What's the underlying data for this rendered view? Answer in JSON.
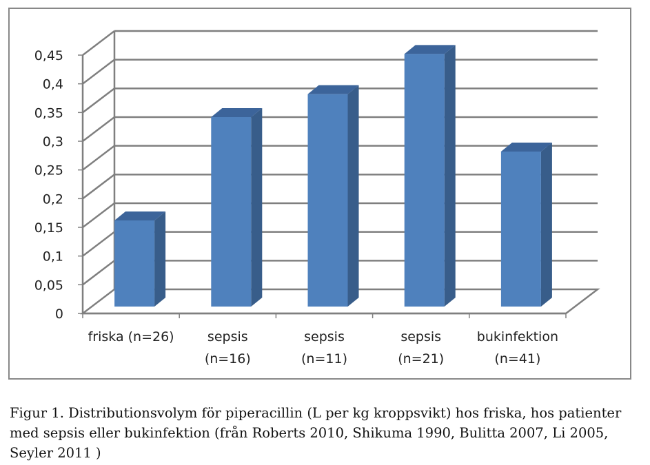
{
  "chart_data": {
    "type": "bar",
    "style": "3d-column",
    "categories": [
      [
        "friska (n=26)"
      ],
      [
        "sepsis",
        "(n=16)"
      ],
      [
        "sepsis",
        "(n=11)"
      ],
      [
        "sepsis",
        "(n=21)"
      ],
      [
        "bukinfektion",
        "(n=41)"
      ]
    ],
    "values": [
      0.15,
      0.33,
      0.37,
      0.44,
      0.27
    ],
    "ylim": [
      0,
      0.45
    ],
    "yticks": [
      "0",
      "0,05",
      "0,1",
      "0,15",
      "0,2",
      "0,25",
      "0,3",
      "0,35",
      "0,4",
      "0,45"
    ],
    "grid": true,
    "legend": "none",
    "colors": {
      "bar_front": "#4f81bd",
      "bar_side": "#385d8a",
      "bar_top": "#3c649a",
      "grid": "#7f7f7f",
      "frame": "#888888"
    }
  },
  "caption": {
    "text": "Figur 1. Distributionsvolym för piperacillin (L per kg kroppsvikt) hos friska, hos patienter med sepsis eller bukinfektion (från Roberts 2010, Shikuma 1990, Bulitta 2007, Li 2005, Seyler 2011 )"
  }
}
